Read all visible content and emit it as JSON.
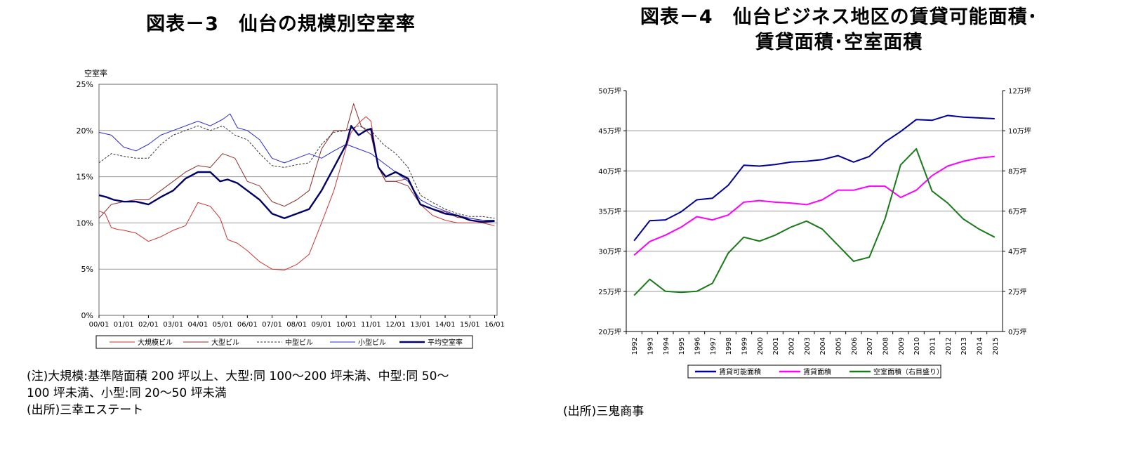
{
  "left": {
    "title": "図表－3　仙台の規模別空室率",
    "note_line1": "(注)大規模:基準階面積 200 坪以上、大型:同 100～200 坪未満、中型:同 50～",
    "note_line2": "100 坪未満、小型:同 20～50 坪未満",
    "source": "(出所)三幸エステート"
  },
  "right": {
    "title_line1": "図表－4　仙台ビジネス地区の賃貸可能面積･",
    "title_line2": "賃貸面積･空室面積",
    "source": "(出所)三鬼商事"
  },
  "chart_data": [
    {
      "type": "line",
      "ylabel": "空室率",
      "ylim": [
        0,
        25
      ],
      "yticks": [
        0,
        5,
        10,
        15,
        20,
        25
      ],
      "ytick_labels": [
        "0%",
        "5%",
        "10%",
        "15%",
        "20%",
        "25%"
      ],
      "xlim": [
        2000,
        2016.1
      ],
      "xticks": [
        2000,
        2001,
        2002,
        2003,
        2004,
        2005,
        2006,
        2007,
        2008,
        2009,
        2010,
        2011,
        2012,
        2013,
        2014,
        2015,
        2016
      ],
      "xtick_labels": [
        "00/01",
        "01/01",
        "02/01",
        "03/01",
        "04/01",
        "05/01",
        "06/01",
        "07/01",
        "08/01",
        "09/01",
        "10/01",
        "11/01",
        "12/01",
        "13/01",
        "14/01",
        "15/01",
        "16/01"
      ],
      "grid": true,
      "legend_position": "bottom",
      "series": [
        {
          "name": "大規模ビル",
          "color": "#cc3333",
          "style": "solid",
          "width": 1,
          "x": [
            2000,
            2000.25,
            2000.5,
            2000.75,
            2001,
            2001.5,
            2002,
            2002.5,
            2003,
            2003.5,
            2004,
            2004.5,
            2004.9,
            2005.2,
            2005.6,
            2006,
            2006.5,
            2007,
            2007.5,
            2008,
            2008.5,
            2009,
            2009.5,
            2010,
            2010.2,
            2010.5,
            2010.8,
            2011,
            2011.3,
            2011.6,
            2012,
            2012.5,
            2013,
            2013.5,
            2014,
            2014.5,
            2015,
            2015.5,
            2016
          ],
          "y": [
            11.3,
            11.0,
            9.5,
            9.3,
            9.2,
            8.9,
            8.0,
            8.5,
            9.2,
            9.7,
            12.2,
            11.8,
            10.5,
            8.2,
            7.8,
            7.0,
            5.8,
            5.0,
            4.9,
            5.5,
            6.6,
            10.0,
            13.5,
            18.2,
            19.8,
            20.8,
            21.5,
            21.0,
            16.0,
            14.5,
            14.5,
            14.8,
            12.0,
            10.8,
            10.3,
            10.0,
            10.0,
            10.0,
            9.7
          ]
        },
        {
          "name": "大型ビル",
          "color": "#8b2c2c",
          "style": "solid",
          "width": 1,
          "x": [
            2000,
            2000.5,
            2001,
            2001.5,
            2002,
            2002.5,
            2003,
            2003.5,
            2004,
            2004.5,
            2005,
            2005.5,
            2006,
            2006.5,
            2007,
            2007.5,
            2008,
            2008.5,
            2009,
            2009.5,
            2010,
            2010.3,
            2010.6,
            2011,
            2011.3,
            2011.6,
            2012,
            2012.5,
            2013,
            2013.5,
            2014,
            2014.5,
            2015,
            2015.5,
            2016
          ],
          "y": [
            10.5,
            12.0,
            12.3,
            12.5,
            12.5,
            13.5,
            14.5,
            15.5,
            16.2,
            16.0,
            17.5,
            17.0,
            14.5,
            14.0,
            12.3,
            11.8,
            12.5,
            13.5,
            18.0,
            20.0,
            20.0,
            22.9,
            20.5,
            19.5,
            16.0,
            14.5,
            14.5,
            14.0,
            12.0,
            11.5,
            11.2,
            10.6,
            10.5,
            10.3,
            10.2
          ]
        },
        {
          "name": "中型ビル",
          "color": "#333333",
          "style": "dashed",
          "width": 1,
          "x": [
            2000,
            2000.5,
            2001,
            2001.5,
            2002,
            2002.5,
            2003,
            2003.5,
            2004,
            2004.5,
            2005,
            2005.5,
            2006,
            2006.5,
            2007,
            2007.5,
            2008,
            2008.5,
            2009,
            2009.5,
            2010,
            2010.5,
            2011,
            2011.5,
            2012,
            2012.5,
            2013,
            2013.5,
            2014,
            2014.5,
            2015,
            2015.5,
            2016
          ],
          "y": [
            16.5,
            17.5,
            17.2,
            17.0,
            17.0,
            18.5,
            19.5,
            20.0,
            20.5,
            20.0,
            20.5,
            19.5,
            19.0,
            17.5,
            16.2,
            16.0,
            16.3,
            16.5,
            18.5,
            19.8,
            20.0,
            20.5,
            20.0,
            18.5,
            17.5,
            16.0,
            13.0,
            12.2,
            11.5,
            11.0,
            10.7,
            10.7,
            10.5
          ]
        },
        {
          "name": "小型ビル",
          "color": "#2b2bcc",
          "style": "solid",
          "width": 1,
          "x": [
            2000,
            2000.5,
            2001,
            2001.5,
            2002,
            2002.5,
            2003,
            2003.5,
            2004,
            2004.5,
            2005,
            2005.3,
            2005.6,
            2006,
            2006.5,
            2007,
            2007.5,
            2008,
            2008.5,
            2009,
            2009.5,
            2010,
            2010.5,
            2011,
            2011.5,
            2012,
            2012.5,
            2013,
            2013.5,
            2014,
            2014.5,
            2015,
            2015.5,
            2016
          ],
          "y": [
            19.8,
            19.5,
            18.2,
            17.8,
            18.5,
            19.5,
            20.0,
            20.5,
            21.0,
            20.5,
            21.2,
            21.8,
            20.3,
            20.0,
            19.0,
            17.0,
            16.5,
            17.0,
            17.5,
            17.0,
            17.8,
            18.5,
            18.0,
            17.5,
            16.5,
            15.5,
            14.5,
            12.5,
            11.8,
            11.3,
            10.8,
            10.5,
            10.3,
            10.3
          ]
        },
        {
          "name": "平均空室率",
          "color": "#000066",
          "style": "solid",
          "width": 2.4,
          "x": [
            2000,
            2000.3,
            2000.6,
            2001,
            2001.5,
            2002,
            2002.5,
            2003,
            2003.5,
            2004,
            2004.5,
            2004.9,
            2005.2,
            2005.6,
            2006,
            2006.5,
            2007,
            2007.5,
            2008,
            2008.5,
            2009,
            2009.5,
            2010,
            2010.2,
            2010.5,
            2010.8,
            2011,
            2011.3,
            2011.6,
            2012,
            2012.5,
            2013,
            2013.5,
            2014,
            2014.5,
            2015,
            2015.5,
            2016
          ],
          "y": [
            13.0,
            12.8,
            12.5,
            12.3,
            12.3,
            12.0,
            12.8,
            13.5,
            14.8,
            15.5,
            15.5,
            14.5,
            14.7,
            14.3,
            13.5,
            12.5,
            11.0,
            10.5,
            11.0,
            11.5,
            13.5,
            16.0,
            18.5,
            20.5,
            19.5,
            20.0,
            20.2,
            16.0,
            15.0,
            15.5,
            14.8,
            12.0,
            11.5,
            11.0,
            10.8,
            10.3,
            10.1,
            10.2
          ]
        }
      ]
    },
    {
      "type": "line",
      "x": [
        1992,
        1993,
        1994,
        1995,
        1996,
        1997,
        1998,
        1999,
        2000,
        2001,
        2002,
        2003,
        2004,
        2005,
        2006,
        2007,
        2008,
        2009,
        2010,
        2011,
        2012,
        2013,
        2014,
        2015
      ],
      "xtick_labels": [
        "1992",
        "1993",
        "1994",
        "1995",
        "1996",
        "1997",
        "1998",
        "1999",
        "2000",
        "2001",
        "2002",
        "2003",
        "2004",
        "2005",
        "2006",
        "2007",
        "2008",
        "2009",
        "2010",
        "2011",
        "2012",
        "2013",
        "2014",
        "2015"
      ],
      "ylim": [
        20,
        50
      ],
      "yticks": [
        20,
        25,
        30,
        35,
        40,
        45,
        50
      ],
      "ytick_labels": [
        "20万坪",
        "25万坪",
        "30万坪",
        "35万坪",
        "40万坪",
        "45万坪",
        "50万坪"
      ],
      "y2lim": [
        0,
        12
      ],
      "y2ticks": [
        0,
        2,
        4,
        6,
        8,
        10,
        12
      ],
      "y2tick_labels": [
        "0万坪",
        "2万坪",
        "4万坪",
        "6万坪",
        "8万坪",
        "10万坪",
        "12万坪"
      ],
      "grid": true,
      "legend_position": "bottom",
      "series": [
        {
          "name": "賃貸可能面積",
          "color": "#000099",
          "axis": "left",
          "values": [
            31.3,
            33.8,
            33.9,
            34.9,
            36.4,
            36.6,
            38.2,
            40.7,
            40.6,
            40.8,
            41.1,
            41.2,
            41.4,
            41.9,
            41.1,
            41.8,
            43.6,
            44.9,
            46.4,
            46.3,
            46.9,
            46.7,
            46.6,
            46.5
          ]
        },
        {
          "name": "賃貸面積",
          "color": "#ff00ff",
          "axis": "left",
          "values": [
            29.5,
            31.2,
            32.0,
            33.0,
            34.3,
            33.9,
            34.5,
            36.1,
            36.3,
            36.1,
            36.0,
            35.8,
            36.4,
            37.6,
            37.6,
            38.1,
            38.1,
            36.7,
            37.6,
            39.4,
            40.6,
            41.2,
            41.6,
            41.8
          ]
        },
        {
          "name": "空室面積（右目盛り）",
          "color": "#1a7a1a",
          "axis": "right",
          "values": [
            1.8,
            2.6,
            2.0,
            1.95,
            2.0,
            2.4,
            3.9,
            4.7,
            4.5,
            4.8,
            5.2,
            5.5,
            5.1,
            4.3,
            3.5,
            3.7,
            5.6,
            8.3,
            9.1,
            7.0,
            6.4,
            5.6,
            5.1,
            4.7
          ]
        }
      ]
    }
  ]
}
